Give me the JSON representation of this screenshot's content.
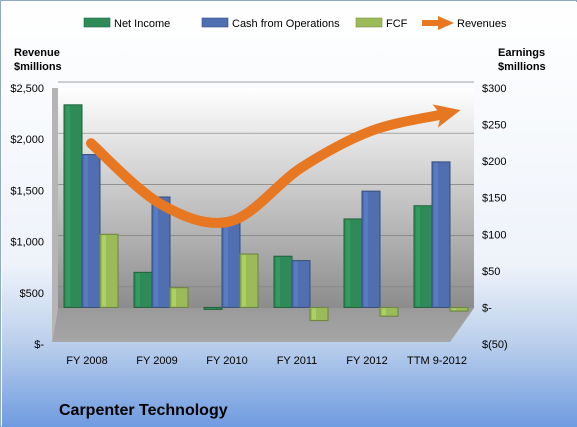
{
  "chart_data": {
    "type": "bar",
    "title": "Carpenter Technology",
    "categories": [
      "FY 2008",
      "FY 2009",
      "FY 2010",
      "FY 2011",
      "FY 2012",
      "TTM 9-2012"
    ],
    "series": [
      {
        "name": "Net Income",
        "kind": "bar",
        "axis": "right",
        "values": [
          277,
          48,
          -2,
          70,
          121,
          139
        ],
        "color": "#2e8b57"
      },
      {
        "name": "Cash from Operations",
        "kind": "bar",
        "axis": "right",
        "values": [
          209,
          151,
          122,
          64,
          159,
          199
        ],
        "color": "#4f6fb0"
      },
      {
        "name": "FCF",
        "kind": "bar",
        "axis": "right",
        "values": [
          100,
          27,
          73,
          -18,
          -12,
          -5
        ],
        "color": "#9bbb59"
      },
      {
        "name": "Revenues",
        "kind": "line",
        "axis": "left",
        "values": [
          1960,
          1365,
          1200,
          1720,
          2080,
          2240
        ],
        "color": "#e87722"
      }
    ],
    "left_axis": {
      "title_line1": "Revenue",
      "title_line2": "$millions",
      "min": 0,
      "max": 2500,
      "step": 500,
      "tick_labels": [
        "$-",
        "$500",
        "$1,000",
        "$1,500",
        "$2,000",
        "$2,500"
      ]
    },
    "right_axis": {
      "title_line1": "Earnings",
      "title_line2": "$millions",
      "min": -50,
      "max": 300,
      "step": 50,
      "tick_labels": [
        "$(50)",
        "$-",
        "$50",
        "$100",
        "$150",
        "$200",
        "$250",
        "$300"
      ]
    },
    "legend": "top",
    "grid": true
  }
}
